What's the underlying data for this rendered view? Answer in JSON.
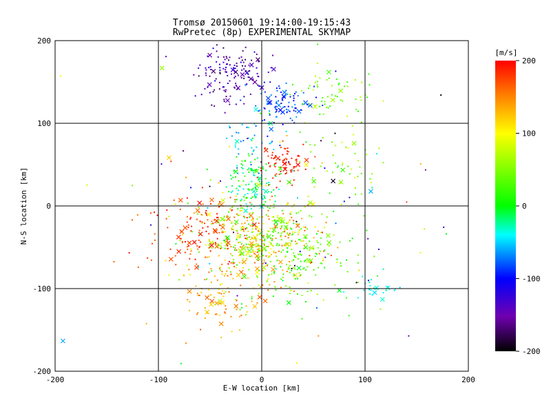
{
  "chart_data": {
    "type": "scatter",
    "title": "Tromsø 20150601 19:14:00-19:15:43",
    "subtitle": "RwPretec (8p) EXPERIMENTAL SKYMAP",
    "xlabel": "E-W location [km]",
    "ylabel": "N-S location [km]",
    "xlim": [
      -200,
      200
    ],
    "ylim": [
      -200,
      200
    ],
    "xticks": [
      "-200",
      "-100",
      "0",
      "100",
      "200"
    ],
    "yticks": [
      "-200",
      "-100",
      "0",
      "100",
      "200"
    ],
    "grid": true,
    "colorbar": {
      "label": "[m/s]",
      "range": [
        -200,
        200
      ],
      "ticks": [
        "200",
        "100",
        "0",
        "-100",
        "-200"
      ],
      "position": "right"
    },
    "markers": {
      "small": "dot",
      "large": "x"
    },
    "clusters": [
      {
        "cx": -30,
        "cy": 160,
        "sx": 18,
        "sy": 18,
        "n": 140,
        "vmin": -180,
        "vmax": -110
      },
      {
        "cx": 20,
        "cy": 125,
        "sx": 14,
        "sy": 12,
        "n": 90,
        "vmin": -110,
        "vmax": -60
      },
      {
        "cx": 65,
        "cy": 130,
        "sx": 25,
        "sy": 20,
        "n": 60,
        "vmin": 10,
        "vmax": 80
      },
      {
        "cx": -10,
        "cy": 80,
        "sx": 14,
        "sy": 15,
        "n": 40,
        "vmin": -80,
        "vmax": -20
      },
      {
        "cx": 20,
        "cy": 50,
        "sx": 10,
        "sy": 12,
        "n": 80,
        "vmin": 170,
        "vmax": 200
      },
      {
        "cx": -10,
        "cy": 40,
        "sx": 15,
        "sy": 12,
        "n": 60,
        "vmin": -30,
        "vmax": 30
      },
      {
        "cx": 70,
        "cy": 50,
        "sx": 20,
        "sy": 25,
        "n": 50,
        "vmin": 20,
        "vmax": 90
      },
      {
        "cx": -10,
        "cy": 12,
        "sx": 12,
        "sy": 8,
        "n": 70,
        "vmin": -50,
        "vmax": 10
      },
      {
        "cx": -5,
        "cy": -40,
        "sx": 30,
        "sy": 25,
        "n": 460,
        "vmin": 20,
        "vmax": 170
      },
      {
        "cx": -60,
        "cy": -30,
        "sx": 25,
        "sy": 25,
        "n": 120,
        "vmin": 150,
        "vmax": 200
      },
      {
        "cx": 30,
        "cy": -60,
        "sx": 30,
        "sy": 30,
        "n": 160,
        "vmin": -10,
        "vmax": 60
      },
      {
        "cx": -40,
        "cy": -110,
        "sx": 20,
        "sy": 20,
        "n": 80,
        "vmin": 110,
        "vmax": 170
      },
      {
        "cx": 110,
        "cy": -100,
        "sx": 12,
        "sy": 8,
        "n": 25,
        "vmin": -50,
        "vmax": -20
      },
      {
        "cx": 0,
        "cy": 0,
        "sx": 90,
        "sy": 95,
        "n": 120,
        "vmin": -200,
        "vmax": 200
      }
    ]
  }
}
